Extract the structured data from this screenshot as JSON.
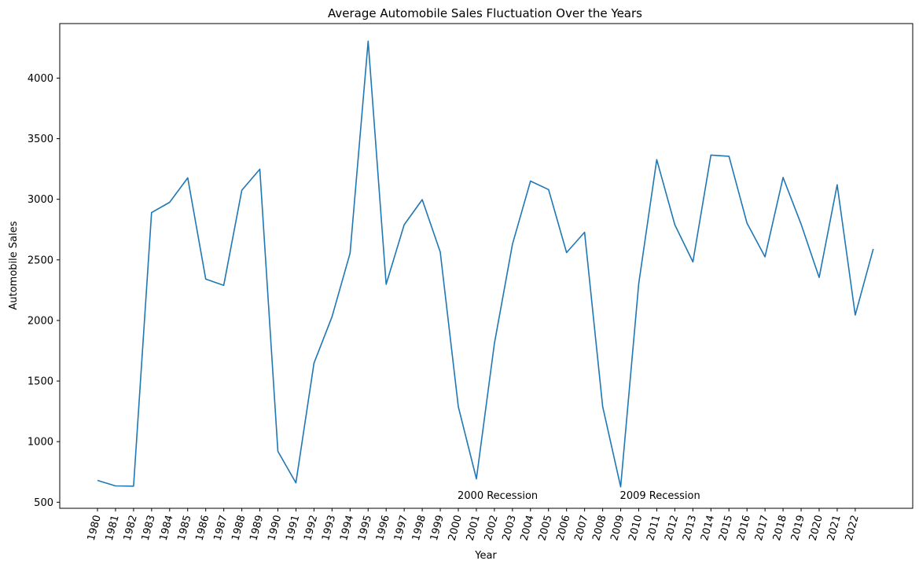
{
  "chart_data": {
    "type": "line",
    "title": "Average Automobile Sales Fluctuation Over the Years",
    "xlabel": "Year",
    "ylabel": "Automobile Sales",
    "x": [
      "1980",
      "1981",
      "1982",
      "1983",
      "1984",
      "1985",
      "1986",
      "1987",
      "1988",
      "1989",
      "1990",
      "1991",
      "1992",
      "1993",
      "1994",
      "1995",
      "1996",
      "1997",
      "1998",
      "1999",
      "2000",
      "2001",
      "2002",
      "2003",
      "2004",
      "2005",
      "2006",
      "2007",
      "2008",
      "2009",
      "2010",
      "2011",
      "2012",
      "2013",
      "2014",
      "2015",
      "2016",
      "2017",
      "2018",
      "2019",
      "2020",
      "2021",
      "2022",
      "2023"
    ],
    "x_tick_labels": [
      "1980",
      "1981",
      "1982",
      "1983",
      "1984",
      "1985",
      "1986",
      "1987",
      "1988",
      "1989",
      "1990",
      "1991",
      "1992",
      "1993",
      "1994",
      "1995",
      "1996",
      "1997",
      "1998",
      "1999",
      "2000",
      "2001",
      "2002",
      "2003",
      "2004",
      "2005",
      "2006",
      "2007",
      "2008",
      "2009",
      "2010",
      "2011",
      "2012",
      "2013",
      "2014",
      "2015",
      "2016",
      "2017",
      "2018",
      "2019",
      "2020",
      "2021",
      "2022"
    ],
    "series": [
      {
        "color": "#1f77b4",
        "values": [
          680,
          635,
          633,
          2890,
          2975,
          3177,
          2342,
          2290,
          3075,
          3248,
          920,
          660,
          1648,
          2030,
          2555,
          4305,
          2298,
          2790,
          2997,
          2565,
          1288,
          693,
          1810,
          2630,
          3150,
          3080,
          2560,
          2728,
          1290,
          627,
          2305,
          3327,
          2790,
          2483,
          3365,
          3355,
          2803,
          2525,
          3180,
          2795,
          2355,
          3120,
          2045,
          2590
        ]
      }
    ],
    "ylim": [
      450,
      4450
    ],
    "y_ticks": [
      500,
      1000,
      1500,
      2000,
      2500,
      3000,
      3500,
      4000
    ],
    "grid": false,
    "annotations": [
      {
        "text": "2000 Recession",
        "x": "2000",
        "y": 560
      },
      {
        "text": "2009 Recession",
        "x": "2009",
        "y": 560
      }
    ]
  }
}
